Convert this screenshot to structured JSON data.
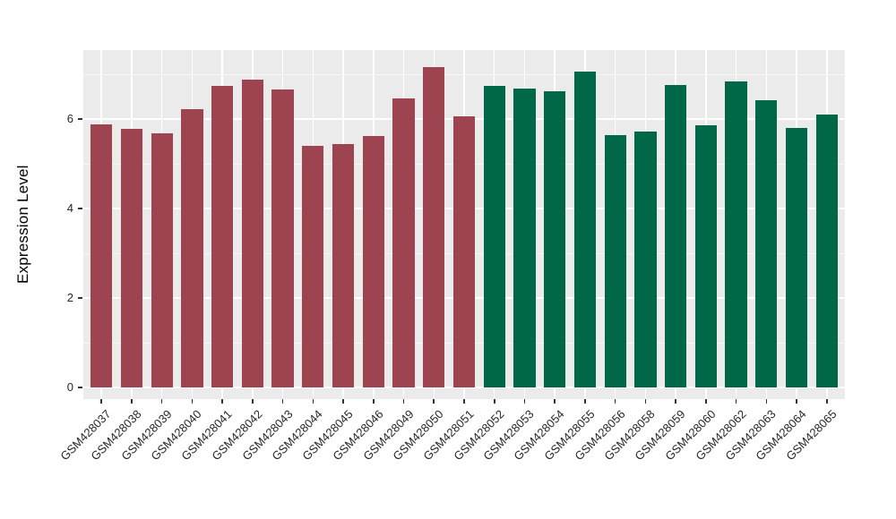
{
  "chart_data": {
    "type": "bar",
    "title": "",
    "xlabel": "",
    "ylabel": "Expression Level",
    "categories": [
      "GSM428037",
      "GSM428038",
      "GSM428039",
      "GSM428040",
      "GSM428041",
      "GSM428042",
      "GSM428043",
      "GSM428044",
      "GSM428045",
      "GSM428046",
      "GSM428049",
      "GSM428050",
      "GSM428051",
      "GSM428052",
      "GSM428053",
      "GSM428054",
      "GSM428055",
      "GSM428056",
      "GSM428058",
      "GSM428059",
      "GSM428060",
      "GSM428062",
      "GSM428063",
      "GSM428064",
      "GSM428065"
    ],
    "values": [
      5.89,
      5.78,
      5.69,
      6.23,
      6.74,
      6.89,
      6.66,
      5.41,
      5.45,
      5.62,
      6.47,
      7.17,
      6.06,
      6.74,
      6.69,
      6.62,
      7.06,
      5.64,
      5.73,
      6.77,
      5.87,
      6.84,
      6.43,
      5.81,
      6.1
    ],
    "groups": [
      "group1",
      "group1",
      "group1",
      "group1",
      "group1",
      "group1",
      "group1",
      "group1",
      "group1",
      "group1",
      "group1",
      "group1",
      "group1",
      "group2",
      "group2",
      "group2",
      "group2",
      "group2",
      "group2",
      "group2",
      "group2",
      "group2",
      "group2",
      "group2",
      "group2"
    ],
    "group_colors": {
      "group1": "#9E4350",
      "group2": "#006849"
    },
    "yticks": [
      0,
      2,
      4,
      6
    ],
    "y_minor_ticks": [
      1,
      3,
      5,
      7
    ],
    "ylim": [
      -0.26,
      7.54
    ],
    "bar_width_fraction": 0.72,
    "grid": "white major and minor horizontal lines, white vertical line at each bar center",
    "legend_position": "none",
    "panel_bg": "#EBEBEB",
    "grid_color": "#FFFFFF",
    "axis_tick_color": "#333333",
    "axis_text_color": "#262626",
    "x_label_angle_deg": 45
  }
}
